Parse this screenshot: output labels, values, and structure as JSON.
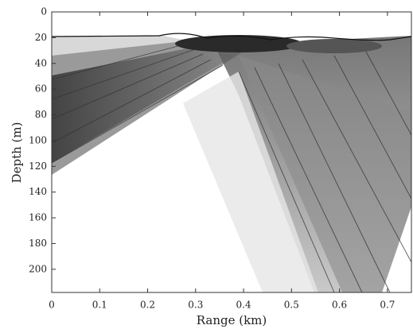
{
  "chart_data": {
    "type": "contour",
    "xlabel": "Range (km)",
    "ylabel": "Depth (m)",
    "xlim": [
      0,
      0.75
    ],
    "xticks": [
      0,
      0.1,
      0.2,
      0.3,
      0.4,
      0.5,
      0.6,
      0.7
    ],
    "ylim": [
      0,
      218
    ],
    "yticks": [
      0,
      20,
      40,
      60,
      80,
      100,
      120,
      140,
      160,
      180,
      200
    ],
    "y_inverted": true
  }
}
